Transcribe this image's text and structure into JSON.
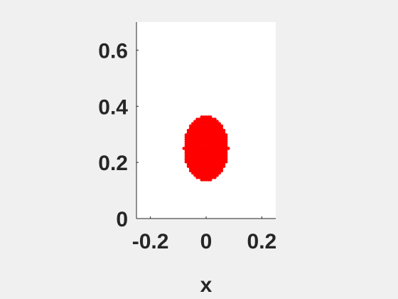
{
  "chart_data": {
    "type": "scatter",
    "title": "",
    "xlabel": "x",
    "ylabel": "",
    "xlim": [
      -0.25,
      0.25
    ],
    "ylim": [
      0,
      0.7
    ],
    "xticks": [
      -0.2,
      0,
      0.2
    ],
    "yticks": [
      0,
      0.2,
      0.4,
      0.6
    ],
    "xtick_labels": [
      "-0.2",
      "0",
      "0.2"
    ],
    "ytick_labels": [
      "0",
      "0.2",
      "0.4",
      "0.6"
    ],
    "grid": false,
    "series": [
      {
        "marker": "filled-dot",
        "color": "#ff0000",
        "region": {
          "shape": "ellipse",
          "center": [
            0,
            0.25
          ],
          "semi_axis_x": 0.08,
          "semi_axis_y": 0.115,
          "spacing_x": 0.008,
          "spacing_y": 0.008
        }
      }
    ],
    "colors": {
      "background": "#f0f0f0",
      "axes_background": "#ffffff",
      "axis_color": "#262626"
    }
  }
}
